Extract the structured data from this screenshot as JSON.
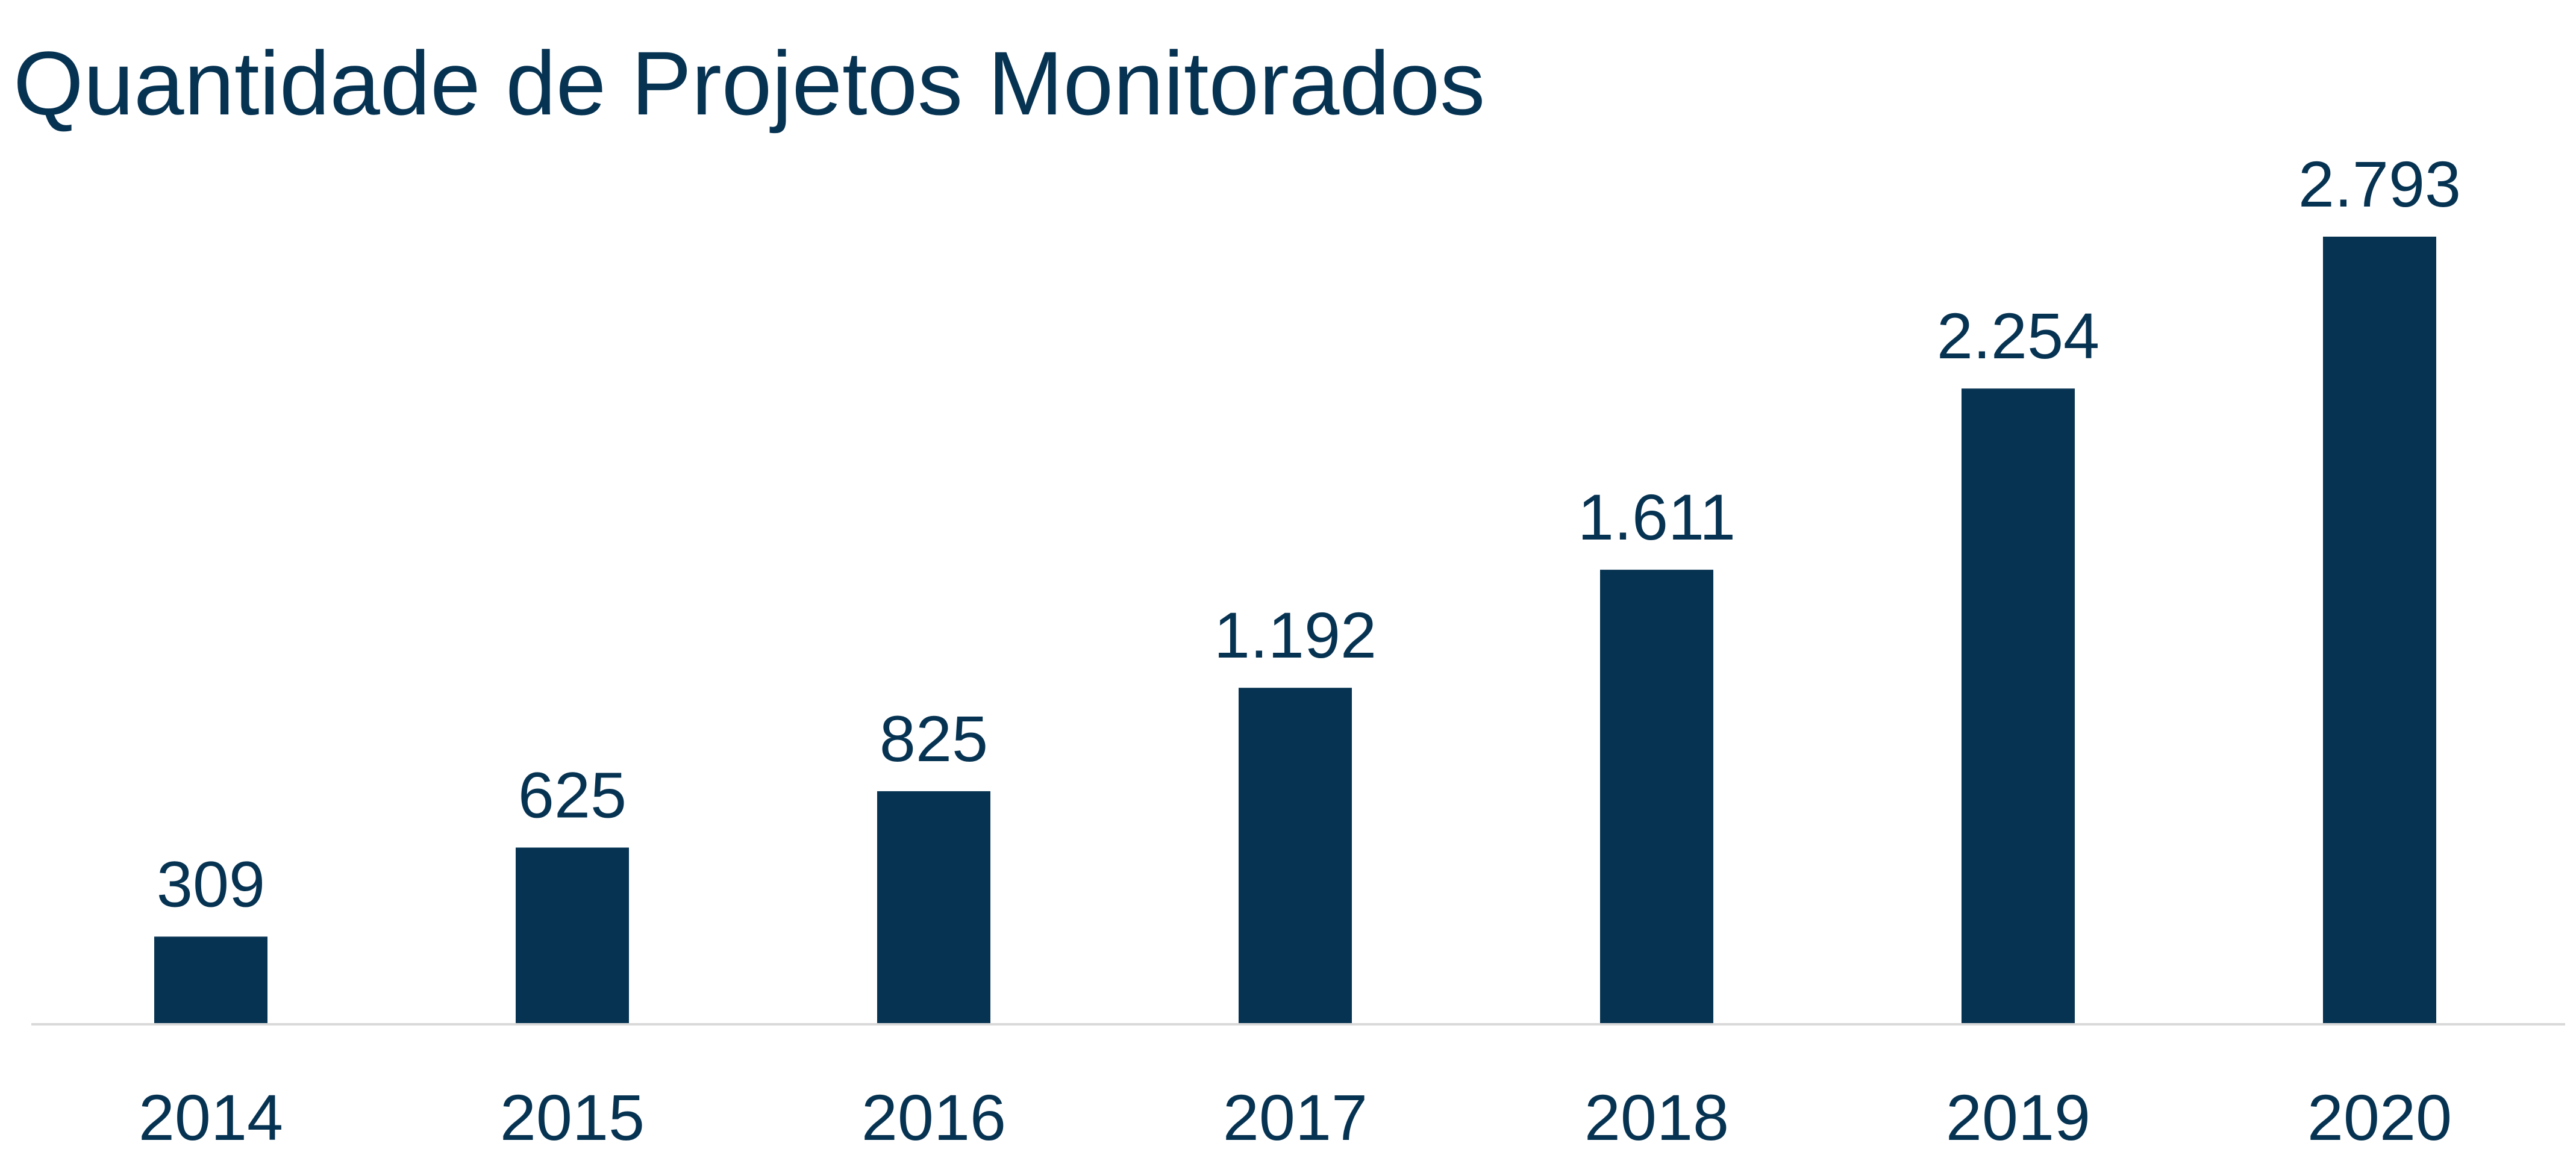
{
  "chart_data": {
    "type": "bar",
    "title": "Quantidade de Projetos Monitorados",
    "xlabel": "",
    "ylabel": "",
    "categories": [
      "2014",
      "2015",
      "2016",
      "2017",
      "2018",
      "2019",
      "2020"
    ],
    "values": [
      309,
      625,
      825,
      1192,
      1611,
      2254,
      2793
    ],
    "data_labels": [
      "309",
      "625",
      "825",
      "1.192",
      "1.611",
      "2.254",
      "2.793"
    ],
    "ylim": [
      0,
      2793
    ],
    "grid": false,
    "legend": "none",
    "colors": {
      "bar": "#073352",
      "text": "#073352",
      "axis": "#d9d9d9"
    }
  }
}
